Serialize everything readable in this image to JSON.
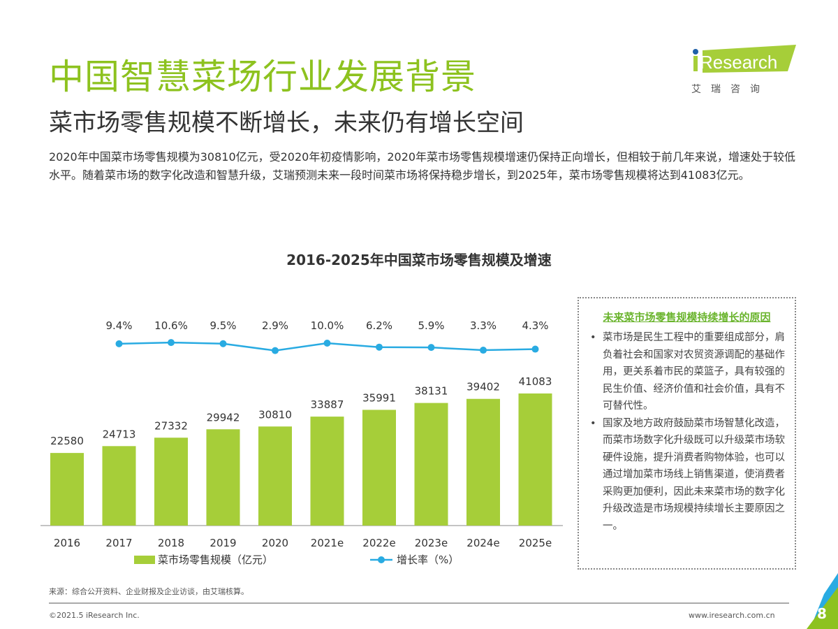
{
  "header": {
    "title": "中国智慧菜场行业发展背景",
    "subtitle": "菜市场零售规模不断增长，未来仍有增长空间",
    "description": "2020年中国菜市场零售规模为30810亿元，受2020年初疫情影响，2020年菜市场零售规模增速仍保持正向增长，但相较于前几年来说，增速处于较低水平。随着菜市场的数字化改造和智慧升级，艾瑞预测未来一段时间菜市场将保持稳步增长，到2025年，菜市场零售规模将达到41083亿元。"
  },
  "logo": {
    "text": "iResearch",
    "cn": "艾 瑞 咨 询"
  },
  "chart_data": {
    "type": "bar+line",
    "title": "2016-2025年中国菜市场零售规模及增速",
    "categories": [
      "2016",
      "2017",
      "2018",
      "2019",
      "2020",
      "2021e",
      "2022e",
      "2023e",
      "2024e",
      "2025e"
    ],
    "series": [
      {
        "name": "菜市场零售规模（亿元）",
        "type": "bar",
        "color": "#a6ce39",
        "values": [
          22580,
          24713,
          27332,
          29942,
          30810,
          33887,
          35991,
          38131,
          39402,
          41083
        ]
      },
      {
        "name": "增长率（%）",
        "type": "line",
        "color": "#29abe2",
        "values": [
          null,
          9.4,
          10.6,
          9.5,
          2.9,
          10.0,
          6.2,
          5.9,
          3.3,
          4.3
        ],
        "labels": [
          "",
          "9.4%",
          "10.6%",
          "9.5%",
          "2.9%",
          "10.0%",
          "6.2%",
          "5.9%",
          "3.3%",
          "4.3%"
        ]
      }
    ],
    "legend": "bottom",
    "grid": false
  },
  "side": {
    "title": "未来菜市场零售规模持续增长的原因",
    "bullets": [
      "菜市场是民生工程中的重要组成部分，肩负着社会和国家对农贸资源调配的基础作用，更关系着市民的菜篮子，具有较强的民生价值、经济价值和社会价值，具有不可替代性。",
      "国家及地方政府鼓励菜市场智慧化改造，而菜市场数字化升级既可以升级菜市场软硬件设施，提升消费者购物体验，也可以通过增加菜市场线上销售渠道，使消费者采购更加便利，因此未来菜市场的数字化升级改造是市场规模持续增长主要原因之一。"
    ]
  },
  "footer": {
    "source": "来源：综合公开资料、企业财报及企业访谈，由艾瑞核算。",
    "copyright": "©2021.5 iResearch Inc.",
    "url": "www.iresearch.com.cn",
    "page": "8"
  }
}
